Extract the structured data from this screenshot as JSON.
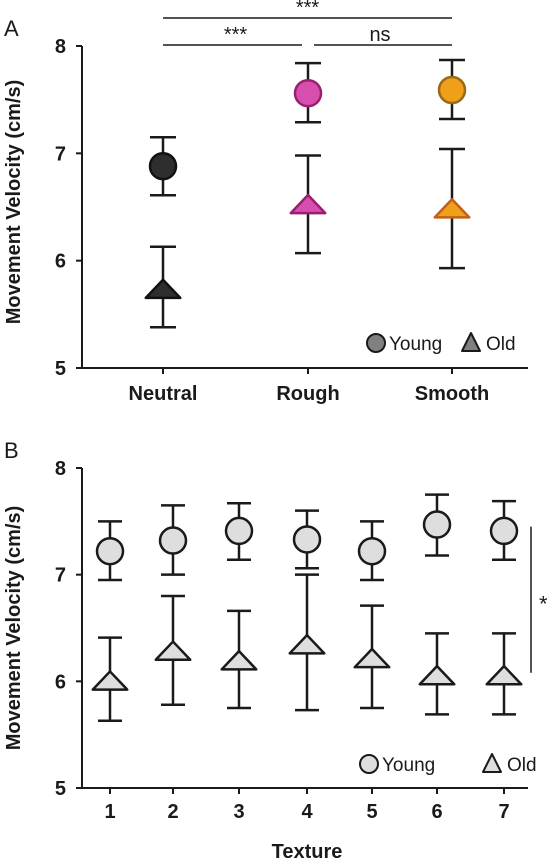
{
  "chart_data": [
    {
      "panel_label": "A",
      "type": "scatter",
      "ylabel": "Movement Velocity (cm/s)",
      "xlabel": "",
      "categories": [
        "Neutral",
        "Rough",
        "Smooth"
      ],
      "ylim": [
        5,
        8
      ],
      "yticks": [
        5,
        6,
        7,
        8
      ],
      "series": [
        {
          "name": "Young",
          "marker": "circle",
          "values": [
            6.88,
            7.56,
            7.59
          ],
          "err_low": [
            6.61,
            7.29,
            7.32
          ],
          "err_high": [
            7.15,
            7.84,
            7.87
          ],
          "colors": [
            "#2e2e2e",
            "#d64fae",
            "#f0a018"
          ],
          "stroke_colors": [
            "#111111",
            "#9a1f6e",
            "#9a6a14"
          ]
        },
        {
          "name": "Old",
          "marker": "triangle",
          "values": [
            5.73,
            6.52,
            6.48
          ],
          "err_low": [
            5.38,
            6.07,
            5.93
          ],
          "err_high": [
            6.13,
            6.98,
            7.04
          ],
          "colors": [
            "#2e2e2e",
            "#d64fae",
            "#f0a018"
          ],
          "stroke_colors": [
            "#111111",
            "#9a1f6e",
            "#c0601a"
          ]
        }
      ],
      "significance": [
        {
          "from": "Neutral",
          "to": "Smooth",
          "label": "***"
        },
        {
          "from": "Neutral",
          "to": "Rough",
          "label": "***"
        },
        {
          "from": "Rough",
          "to": "Smooth",
          "label": "ns"
        }
      ],
      "legend": {
        "position": "bottom-right",
        "young_label": "Young",
        "old_label": "Old",
        "color": "#808080"
      }
    },
    {
      "panel_label": "B",
      "type": "scatter",
      "ylabel": "Movement Velocity (cm/s)",
      "xlabel": "Texture",
      "categories": [
        "1",
        "2",
        "3",
        "4",
        "5",
        "6",
        "7"
      ],
      "ylim": [
        5,
        8
      ],
      "yticks": [
        5,
        6,
        7,
        8
      ],
      "series": [
        {
          "name": "Young",
          "marker": "circle",
          "values": [
            7.22,
            7.32,
            7.41,
            7.33,
            7.22,
            7.47,
            7.41
          ],
          "err_low": [
            6.95,
            7.0,
            7.14,
            7.06,
            6.95,
            7.18,
            7.14
          ],
          "err_high": [
            7.5,
            7.65,
            7.67,
            7.6,
            7.5,
            7.75,
            7.69
          ],
          "color": "#dedede"
        },
        {
          "name": "Old",
          "marker": "triangle",
          "values": [
            6.0,
            6.28,
            6.19,
            6.34,
            6.21,
            6.05,
            6.05
          ],
          "err_low": [
            5.63,
            5.78,
            5.75,
            5.73,
            5.75,
            5.69,
            5.69
          ],
          "err_high": [
            6.41,
            6.8,
            6.66,
            7.0,
            6.71,
            6.45,
            6.45
          ],
          "color": "#dedede"
        }
      ],
      "significance": [
        {
          "between": "Young vs Old",
          "label": "*",
          "y_range": [
            6.08,
            7.45
          ]
        }
      ],
      "legend": {
        "position": "bottom-right",
        "young_label": "Young",
        "old_label": "Old"
      }
    }
  ]
}
